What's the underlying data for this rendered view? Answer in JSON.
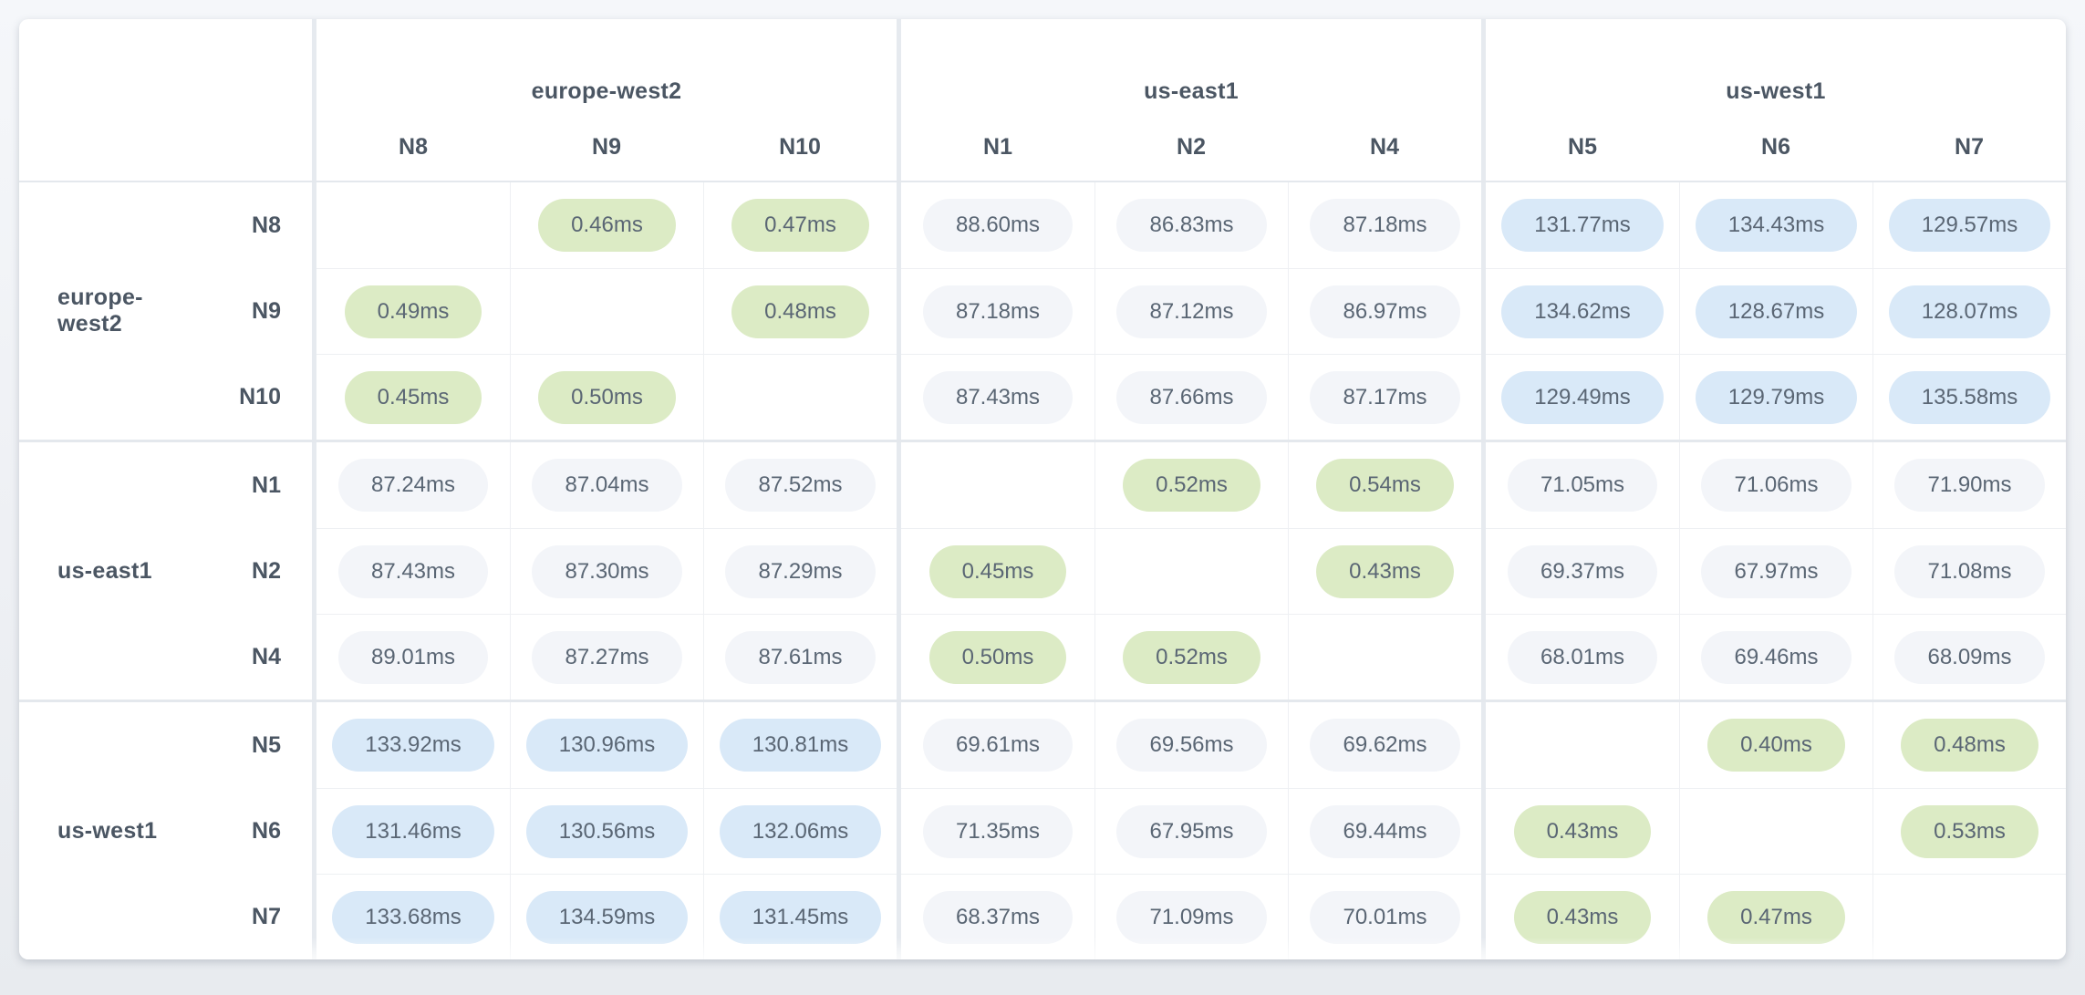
{
  "chart_data": {
    "type": "heatmap",
    "unit": "ms",
    "description_visible_text_only": "",
    "groups": [
      {
        "label": "europe-west2",
        "nodes": [
          "N8",
          "N9",
          "N10"
        ]
      },
      {
        "label": "us-east1",
        "nodes": [
          "N1",
          "N2",
          "N4"
        ]
      },
      {
        "label": "us-west1",
        "nodes": [
          "N5",
          "N6",
          "N7"
        ]
      }
    ],
    "rows": [
      "N8",
      "N9",
      "N10",
      "N1",
      "N2",
      "N4",
      "N5",
      "N6",
      "N7"
    ],
    "columns": [
      "N8",
      "N9",
      "N10",
      "N1",
      "N2",
      "N4",
      "N5",
      "N6",
      "N7"
    ],
    "values_ms": [
      [
        null,
        0.46,
        0.47,
        88.6,
        86.83,
        87.18,
        131.77,
        134.43,
        129.57
      ],
      [
        0.49,
        null,
        0.48,
        87.18,
        87.12,
        86.97,
        134.62,
        128.67,
        128.07
      ],
      [
        0.45,
        0.5,
        null,
        87.43,
        87.66,
        87.17,
        129.49,
        129.79,
        135.58
      ],
      [
        87.24,
        87.04,
        87.52,
        null,
        0.52,
        0.54,
        71.05,
        71.06,
        71.9
      ],
      [
        87.43,
        87.3,
        87.29,
        0.45,
        null,
        0.43,
        69.37,
        67.97,
        71.08
      ],
      [
        89.01,
        87.27,
        87.61,
        0.5,
        0.52,
        null,
        68.01,
        69.46,
        68.09
      ],
      [
        133.92,
        130.96,
        130.81,
        69.61,
        69.56,
        69.62,
        null,
        0.4,
        0.48
      ],
      [
        131.46,
        130.56,
        132.06,
        71.35,
        67.95,
        69.44,
        0.43,
        null,
        0.53
      ],
      [
        133.68,
        134.59,
        131.45,
        68.37,
        71.09,
        70.01,
        0.43,
        0.47,
        null
      ]
    ],
    "cell_color_rules": {
      "low_intra_region_lt_1ms": "#dcebc5",
      "mid_cross_region": "#f3f5f9",
      "high_gt_100ms": "#d9e9f8"
    },
    "layout": {
      "diagonal": "empty",
      "legend": "none",
      "grid": "group-separated matrix"
    }
  },
  "colors": {
    "green_pill": "#dcebc5",
    "blue_pill": "#d9e9f8",
    "gray_pill": "#f3f5f9",
    "group_divider": "#e6eaef",
    "thin_divider": "#eef0f3",
    "header_text": "#4b5663",
    "cell_text": "#5a6674",
    "card_background": "#ffffff"
  }
}
